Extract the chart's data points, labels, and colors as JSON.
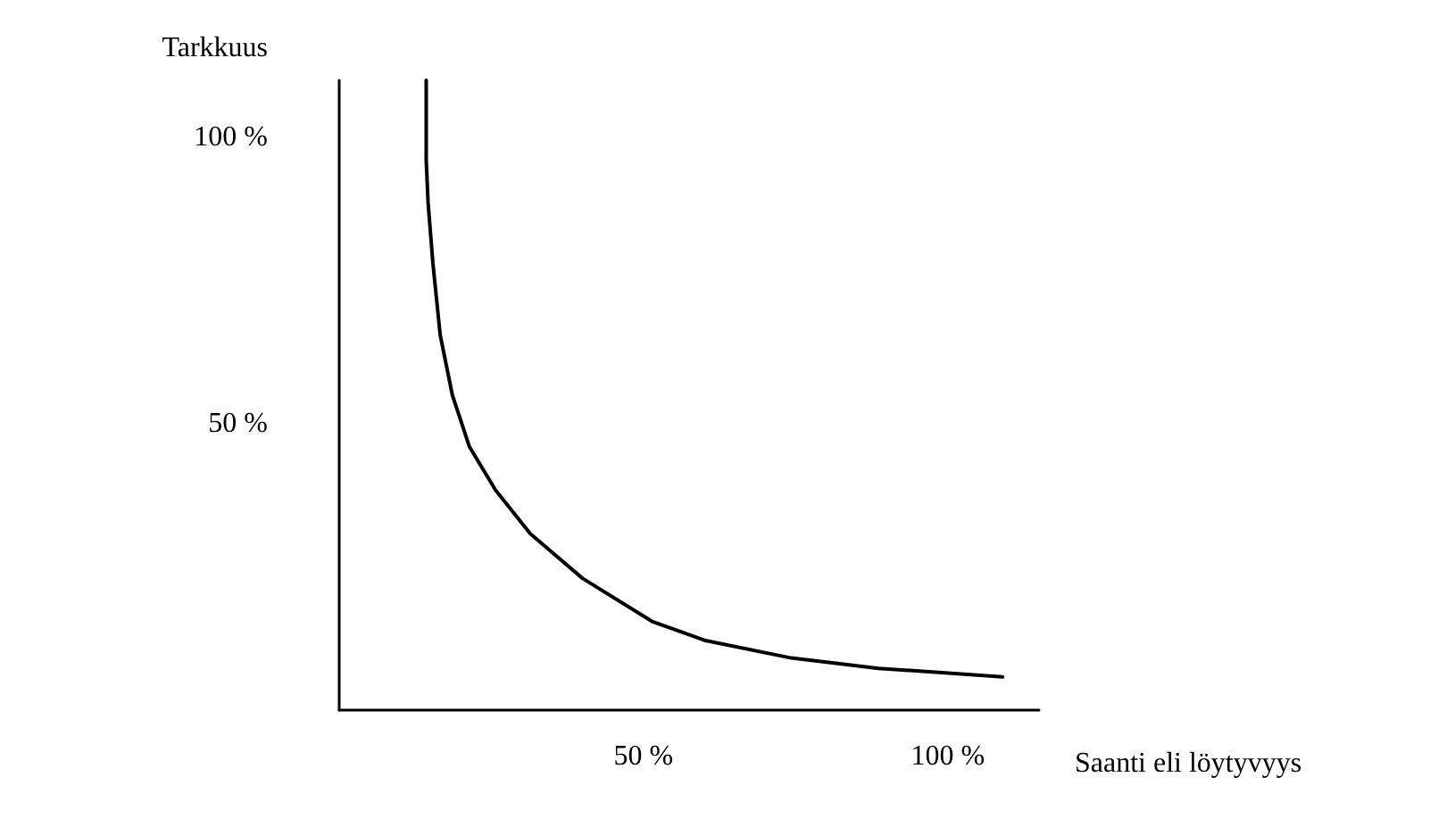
{
  "chart_data": {
    "type": "line",
    "xlabel": "Saanti eli löytyvyys",
    "ylabel": "Tarkkuus",
    "series": [
      {
        "color": "#000000",
        "x": [
          14.3,
          14.3,
          14.6,
          15.4,
          16.6,
          18.6,
          21.4,
          25.7,
          31.4,
          40,
          51.4,
          60,
          74.3,
          88.6,
          109
        ],
        "values": [
          110,
          96,
          88.7,
          78,
          65.5,
          55,
          46,
          38.4,
          30.8,
          23,
          15.5,
          12.2,
          9.1,
          7.3,
          5.8
        ]
      }
    ],
    "xlim": [
      0,
      115
    ],
    "xticks": [
      {
        "value": 50,
        "label": "50 %"
      },
      {
        "value": 100,
        "label": "100 %"
      }
    ],
    "ylim": [
      0,
      110
    ],
    "yticks": [
      {
        "value": 50,
        "label": "50 %"
      },
      {
        "value": 100,
        "label": "100 %"
      }
    ],
    "grid": false,
    "marker": "none",
    "line_style": "solid"
  }
}
